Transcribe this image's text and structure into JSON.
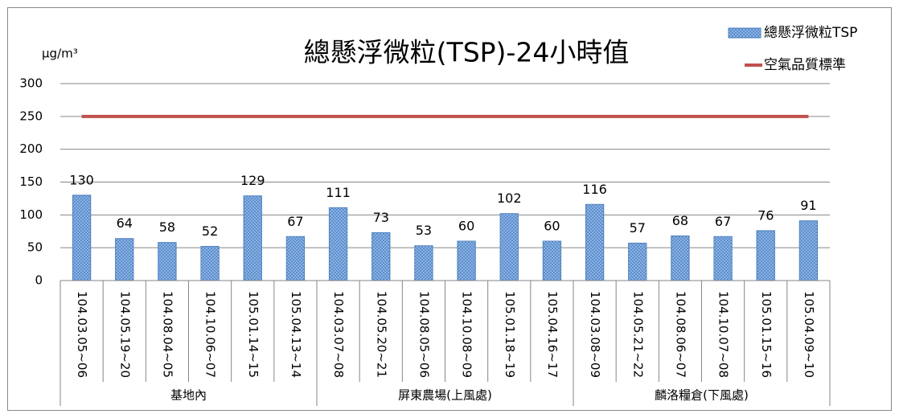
{
  "chart_data": {
    "type": "bar",
    "title": "總懸浮微粒(TSP)-24小時值",
    "y_axis_label": "μg/m³",
    "groups": [
      {
        "name": "基地內",
        "categories": [
          "104.03.05~06",
          "104.05.19~20",
          "104.08.04~05",
          "104.10.06~07",
          "105.01.14~15",
          "105.04.13~14"
        ]
      },
      {
        "name": "屏東農場(上風處)",
        "categories": [
          "104.03.07~08",
          "104.05.20~21",
          "104.08.05~06",
          "104.10.08~09",
          "105.01.18~19",
          "105.04.16~17"
        ]
      },
      {
        "name": "麟洛糧倉(下風處)",
        "categories": [
          "104.03.08~09",
          "104.05.21~22",
          "104.08.06~07",
          "104.10.07~08",
          "105.01.15~16",
          "105.04.09~10"
        ]
      }
    ],
    "series": [
      {
        "name": "總懸浮微粒TSP",
        "type": "bar",
        "color": "#4f81bd",
        "values": [
          130,
          64,
          58,
          52,
          129,
          67,
          111,
          73,
          53,
          60,
          102,
          60,
          116,
          57,
          68,
          67,
          76,
          91
        ]
      },
      {
        "name": "空氣品質標準",
        "type": "line",
        "color": "#c0504d",
        "values": [
          250,
          250,
          250,
          250,
          250,
          250,
          250,
          250,
          250,
          250,
          250,
          250,
          250,
          250,
          250,
          250,
          250,
          250
        ]
      }
    ],
    "ylim": [
      0,
      300
    ],
    "yticks": [
      0,
      50,
      100,
      150,
      200,
      250,
      300
    ],
    "grid": true,
    "legend": "top-right"
  }
}
